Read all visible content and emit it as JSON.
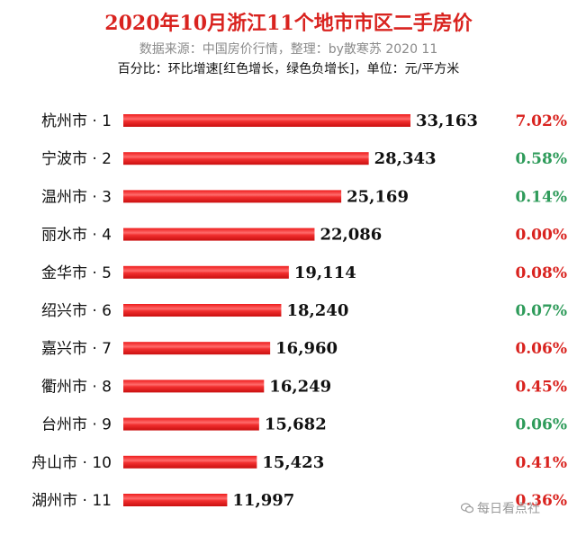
{
  "header": {
    "title": "2020年10月浙江11个地市市区二手房价",
    "source": "数据来源：中国房价行情，整理：by散寒苏 2020 11",
    "note": "百分比：环比增速[红色增长，绿色负增长]，单位：元/平方米"
  },
  "watermark": {
    "text": "每日看点社",
    "icon": "wechat-icon"
  },
  "colors": {
    "bar": "#ee1c1c",
    "bar_highlight": "#ff6b6b",
    "pct_red": "#d9231f",
    "pct_green": "#2e9b5a",
    "title": "#d9231f"
  },
  "chart_data": {
    "type": "bar",
    "orientation": "horizontal",
    "categories": [
      "杭州市 · 1",
      "宁波市 · 2",
      "温州市 · 3",
      "丽水市 · 4",
      "金华市 · 5",
      "绍兴市 · 6",
      "嘉兴市 · 7",
      "衢州市 · 8",
      "台州市 · 9",
      "舟山市 · 10",
      "湖州市 · 11"
    ],
    "values": [
      33163,
      28343,
      25169,
      22086,
      19114,
      18240,
      16960,
      16249,
      15682,
      15423,
      11997
    ],
    "value_labels": [
      "33,163",
      "28,343",
      "25,169",
      "22,086",
      "19,114",
      "18,240",
      "16,960",
      "16,249",
      "15,682",
      "15,423",
      "11,997"
    ],
    "mom_growth": [
      "7.02%",
      "0.58%",
      "0.14%",
      "0.00%",
      "0.08%",
      "0.07%",
      "0.06%",
      "0.45%",
      "0.06%",
      "0.41%",
      "0.36%"
    ],
    "mom_growth_color": [
      "red",
      "green",
      "green",
      "red",
      "red",
      "green",
      "red",
      "red",
      "green",
      "red",
      "red"
    ],
    "title": "2020年10月浙江11个地市市区二手房价",
    "xlabel": "",
    "ylabel": "",
    "grid": false,
    "legend": "none"
  }
}
